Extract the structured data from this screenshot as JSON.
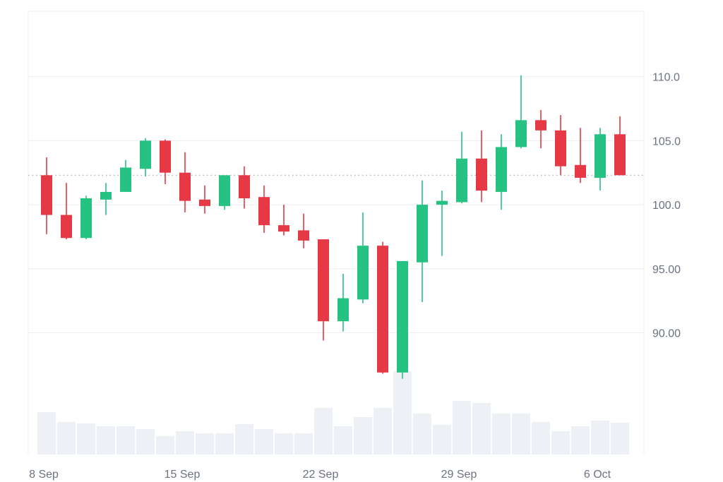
{
  "chart_data": {
    "type": "candlestick",
    "x_tick_labels": [
      "8 Sep",
      "15 Sep",
      "22 Sep",
      "29 Sep",
      "6 Oct"
    ],
    "y_tick_labels": [
      "110.0",
      "105.0",
      "100.0",
      "95.00",
      "90.00"
    ],
    "y_ticks": [
      110,
      105,
      100,
      95,
      90
    ],
    "ylim": [
      80.5,
      115.1
    ],
    "grid": true,
    "reference_line": 102.3,
    "colors": {
      "up": "#26c281",
      "down": "#e63946",
      "volume": "#edf0f4",
      "grid": "#eceef1",
      "reference_line": "#9ca3af",
      "axis_text": "#6b7280"
    },
    "candles": [
      {
        "date": "2025-09-08",
        "open": 102.3,
        "high": 103.7,
        "low": 97.7,
        "close": 99.2
      },
      {
        "date": "2025-09-09",
        "open": 99.2,
        "high": 101.7,
        "low": 97.3,
        "close": 97.4
      },
      {
        "date": "2025-09-10",
        "open": 97.4,
        "high": 100.7,
        "low": 97.3,
        "close": 100.5
      },
      {
        "date": "2025-09-11",
        "open": 100.4,
        "high": 101.7,
        "low": 99.2,
        "close": 101.0
      },
      {
        "date": "2025-09-12",
        "open": 101.0,
        "high": 103.5,
        "low": 101.0,
        "close": 102.9
      },
      {
        "date": "2025-09-13",
        "open": 102.8,
        "high": 105.2,
        "low": 102.2,
        "close": 105.0
      },
      {
        "date": "2025-09-14",
        "open": 105.0,
        "high": 105.1,
        "low": 101.6,
        "close": 102.5
      },
      {
        "date": "2025-09-15",
        "open": 102.5,
        "high": 104.1,
        "low": 99.4,
        "close": 100.3
      },
      {
        "date": "2025-09-16",
        "open": 100.4,
        "high": 101.5,
        "low": 99.3,
        "close": 99.9
      },
      {
        "date": "2025-09-17",
        "open": 99.9,
        "high": 102.3,
        "low": 99.6,
        "close": 102.3
      },
      {
        "date": "2025-09-18",
        "open": 102.3,
        "high": 103.0,
        "low": 99.7,
        "close": 100.5
      },
      {
        "date": "2025-09-19",
        "open": 100.6,
        "high": 101.5,
        "low": 97.8,
        "close": 98.4
      },
      {
        "date": "2025-09-20",
        "open": 98.4,
        "high": 100.0,
        "low": 97.6,
        "close": 97.9
      },
      {
        "date": "2025-09-21",
        "open": 98.0,
        "high": 99.3,
        "low": 96.6,
        "close": 97.2
      },
      {
        "date": "2025-09-22",
        "open": 97.3,
        "high": 97.3,
        "low": 89.4,
        "close": 90.9
      },
      {
        "date": "2025-09-23",
        "open": 90.9,
        "high": 94.6,
        "low": 90.1,
        "close": 92.7
      },
      {
        "date": "2025-09-24",
        "open": 92.6,
        "high": 99.4,
        "low": 92.3,
        "close": 96.8
      },
      {
        "date": "2025-09-25",
        "open": 96.8,
        "high": 97.1,
        "low": 86.8,
        "close": 86.9
      },
      {
        "date": "2025-09-26",
        "open": 86.9,
        "high": 95.6,
        "low": 86.4,
        "close": 95.6
      },
      {
        "date": "2025-09-27",
        "open": 95.5,
        "high": 101.9,
        "low": 92.4,
        "close": 100.0
      },
      {
        "date": "2025-09-28",
        "open": 100.0,
        "high": 101.1,
        "low": 96.0,
        "close": 100.3
      },
      {
        "date": "2025-09-29",
        "open": 100.2,
        "high": 105.7,
        "low": 100.1,
        "close": 103.6
      },
      {
        "date": "2025-09-30",
        "open": 103.6,
        "high": 105.8,
        "low": 100.2,
        "close": 101.1
      },
      {
        "date": "2025-10-01",
        "open": 101.0,
        "high": 105.5,
        "low": 99.6,
        "close": 104.5
      },
      {
        "date": "2025-10-02",
        "open": 104.5,
        "high": 110.1,
        "low": 104.4,
        "close": 106.6
      },
      {
        "date": "2025-10-03",
        "open": 106.6,
        "high": 107.4,
        "low": 104.4,
        "close": 105.8
      },
      {
        "date": "2025-10-04",
        "open": 105.8,
        "high": 107.0,
        "low": 102.3,
        "close": 103.0
      },
      {
        "date": "2025-10-05",
        "open": 103.1,
        "high": 106.0,
        "low": 101.7,
        "close": 102.1
      },
      {
        "date": "2025-10-06",
        "open": 102.1,
        "high": 106.0,
        "low": 101.1,
        "close": 105.5
      },
      {
        "date": "2025-10-07",
        "open": 105.5,
        "high": 106.9,
        "low": 102.3,
        "close": 102.3
      }
    ],
    "volume_relative": [
      0.6,
      0.46,
      0.44,
      0.4,
      0.4,
      0.36,
      0.26,
      0.33,
      0.3,
      0.3,
      0.43,
      0.36,
      0.3,
      0.3,
      0.66,
      0.4,
      0.53,
      0.66,
      1.18,
      0.58,
      0.42,
      0.76,
      0.73,
      0.58,
      0.58,
      0.46,
      0.33,
      0.4,
      0.48,
      0.45
    ]
  }
}
